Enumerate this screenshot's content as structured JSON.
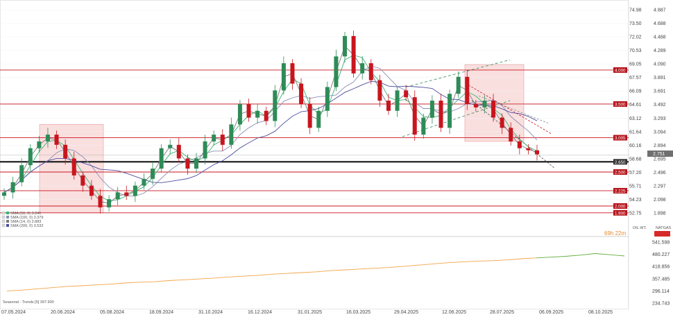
{
  "chart_data": {
    "type": "candlestick",
    "instrument_labels": [
      "OIL.WT.",
      "NATGAS"
    ],
    "timer": "69h 22m",
    "last_price": "2.751",
    "y_axis_left": [
      "74.98",
      "73.50",
      "72.02",
      "70.53",
      "69.05",
      "67.57",
      "66.09",
      "64.61",
      "63.12",
      "61.64",
      "60.16",
      "58.68",
      "57.20",
      "55.71",
      "54.23",
      "52.75"
    ],
    "y_axis_right": [
      "4.887",
      "4.688",
      "4.488",
      "4.289",
      "4.090",
      "3.891",
      "3.691",
      "3.492",
      "3.293",
      "3.094",
      "2.894",
      "2.695",
      "2.496",
      "2.297",
      "2.098",
      "1.898"
    ],
    "x_labels": [
      "07.05.2024",
      "20.06.2024",
      "05.08.2024",
      "18.09.2024",
      "31.10.2024",
      "16.12.2024",
      "31.01.2025",
      "16.03.2025",
      "29.04.2025",
      "12.06.2025",
      "28.07.2025",
      "06.09.2025",
      "08.10.2025"
    ],
    "horizontal_levels": [
      {
        "label": "4.000",
        "value": 4.0
      },
      {
        "label": "3.500",
        "value": 3.5
      },
      {
        "label": "3.005",
        "value": 3.005
      },
      {
        "label": "2.650",
        "value": 2.65
      },
      {
        "label": "2.500",
        "value": 2.5
      },
      {
        "label": "2.225",
        "value": 2.225
      },
      {
        "label": "2.000",
        "value": 2.0
      },
      {
        "label": "1.900",
        "value": 1.9
      }
    ],
    "indicators": [
      {
        "label": "SMA (50, 0) 3.241",
        "color": "#3cb371"
      },
      {
        "label": "SMA (100, 0) 3.379",
        "color": "#8a8fb8"
      },
      {
        "label": "SMA (14, 0) 2.883",
        "color": "#7a7a7a"
      },
      {
        "label": "SMA (200, 0) 3.532",
        "color": "#4b4f9e"
      }
    ],
    "sub_panel": {
      "label": "Seasonal - Trends [5] 397.900",
      "y_axis": [
        "541.598",
        "480.227",
        "418.856",
        "357.485",
        "296.114",
        "234.743"
      ],
      "ylim": [
        234.743,
        541.598
      ]
    },
    "price_series_close": [
      2.2,
      2.35,
      2.6,
      2.85,
      2.95,
      3.05,
      2.9,
      2.7,
      2.45,
      2.3,
      2.15,
      1.98,
      2.1,
      2.2,
      2.15,
      2.3,
      2.4,
      2.55,
      2.85,
      2.9,
      2.7,
      2.55,
      2.7,
      2.95,
      3.05,
      2.9,
      3.2,
      3.5,
      3.3,
      3.4,
      3.25,
      3.7,
      4.1,
      3.8,
      3.5,
      3.15,
      3.4,
      3.75,
      4.2,
      4.5,
      3.95,
      4.1,
      3.85,
      3.55,
      3.4,
      3.7,
      3.6,
      3.05,
      3.3,
      3.55,
      3.15,
      3.65,
      3.9,
      3.5,
      3.45,
      3.55,
      3.3,
      3.15,
      2.95,
      2.85,
      2.82,
      2.76
    ],
    "seasonal_series": [
      296,
      300,
      306,
      312,
      318,
      322,
      326,
      330,
      336,
      340,
      342,
      348,
      352,
      356,
      360,
      366,
      370,
      374,
      380,
      384,
      388,
      392,
      398,
      402,
      406,
      410,
      414,
      420,
      426,
      432,
      438,
      442,
      446,
      448,
      452,
      458,
      462,
      466,
      470,
      476,
      484,
      478,
      472
    ]
  },
  "colors": {
    "levels": "#c9151e",
    "label_bg": "#b5141b",
    "bull": "#2e8b57",
    "bear": "#c9151e",
    "seasonal_past": "#f4a34a",
    "seasonal_future": "#5fae3a",
    "zone": "#f6c4c4"
  }
}
